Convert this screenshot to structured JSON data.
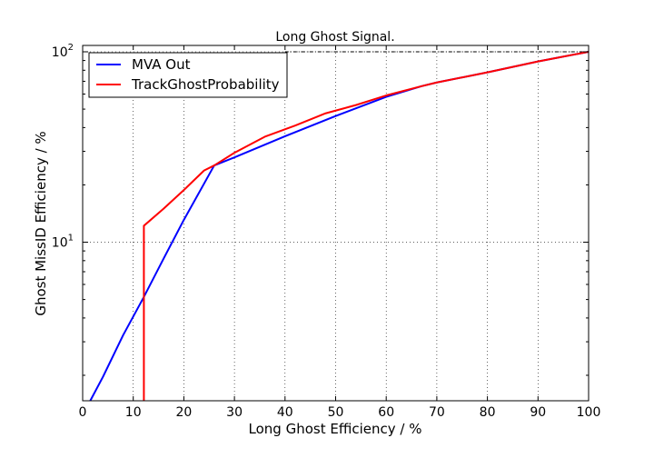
{
  "chart_data": {
    "type": "line",
    "title": "Long Ghost Signal.",
    "xlabel": "Long Ghost Efficiency / %",
    "ylabel": "Ghost MissID Efficiency / %",
    "xlim": [
      0,
      100
    ],
    "ylim": [
      1.47,
      108
    ],
    "yscale": "log",
    "grid": true,
    "legend_position": "top-left",
    "x_ticks": [
      0,
      10,
      20,
      30,
      40,
      50,
      60,
      70,
      80,
      90,
      100
    ],
    "x_tick_labels": [
      "0",
      "10",
      "20",
      "30",
      "40",
      "50",
      "60",
      "70",
      "80",
      "90",
      "100"
    ],
    "y_major_ticks": [
      10,
      100
    ],
    "y_tick_labels": [
      {
        "base": "10",
        "exp": "1"
      },
      {
        "base": "10",
        "exp": "2"
      }
    ],
    "series": [
      {
        "name": "MVA Out",
        "color": "#0000ff",
        "points": [
          [
            1.5,
            1.47
          ],
          [
            4,
            1.96
          ],
          [
            8,
            3.25
          ],
          [
            12,
            5.1
          ],
          [
            16,
            8.2
          ],
          [
            20,
            13.1
          ],
          [
            26,
            25.3
          ],
          [
            30,
            27.9
          ],
          [
            40,
            36
          ],
          [
            50,
            46
          ],
          [
            60,
            58
          ],
          [
            67,
            66
          ],
          [
            70,
            69
          ],
          [
            80,
            78
          ],
          [
            90,
            89
          ],
          [
            100,
            100
          ]
        ]
      },
      {
        "name": "TrackGhostProbability",
        "color": "#ff0000",
        "points": [
          [
            12.1,
            1.47
          ],
          [
            12.1,
            12.2
          ],
          [
            16,
            15
          ],
          [
            20,
            18.8
          ],
          [
            24,
            23.8
          ],
          [
            26,
            25.3
          ],
          [
            30,
            29.5
          ],
          [
            36,
            35.8
          ],
          [
            42,
            41
          ],
          [
            48,
            47.5
          ],
          [
            54,
            52.5
          ],
          [
            60,
            59
          ],
          [
            67,
            66
          ],
          [
            70,
            69
          ],
          [
            80,
            78
          ],
          [
            90,
            89
          ],
          [
            100,
            100
          ]
        ]
      }
    ],
    "reference_line": {
      "style": "dash-dot",
      "color": "#000000",
      "y": 100,
      "x_from": 40,
      "x_to": 100
    }
  }
}
